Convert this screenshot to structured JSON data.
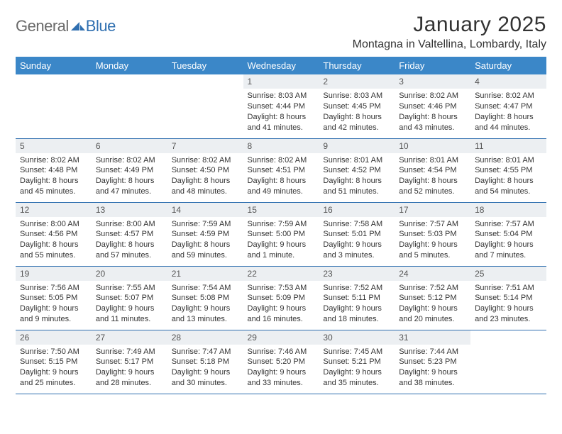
{
  "brand": {
    "text1": "General",
    "text2": "Blue",
    "text1_color": "#6a6a6a",
    "text2_color": "#2f6fb0",
    "icon_color": "#2f6fb0"
  },
  "title": "January 2025",
  "subtitle": "Montagna in Valtellina, Lombardy, Italy",
  "colors": {
    "header_bg": "#3b87c8",
    "header_text": "#ffffff",
    "daynum_bg": "#eceff2",
    "rule": "#2f6fb0",
    "body_text": "#333333"
  },
  "daysOfWeek": [
    "Sunday",
    "Monday",
    "Tuesday",
    "Wednesday",
    "Thursday",
    "Friday",
    "Saturday"
  ],
  "weeks": [
    [
      null,
      null,
      null,
      {
        "n": "1",
        "sr": "Sunrise: 8:03 AM",
        "ss": "Sunset: 4:44 PM",
        "d1": "Daylight: 8 hours",
        "d2": "and 41 minutes."
      },
      {
        "n": "2",
        "sr": "Sunrise: 8:03 AM",
        "ss": "Sunset: 4:45 PM",
        "d1": "Daylight: 8 hours",
        "d2": "and 42 minutes."
      },
      {
        "n": "3",
        "sr": "Sunrise: 8:02 AM",
        "ss": "Sunset: 4:46 PM",
        "d1": "Daylight: 8 hours",
        "d2": "and 43 minutes."
      },
      {
        "n": "4",
        "sr": "Sunrise: 8:02 AM",
        "ss": "Sunset: 4:47 PM",
        "d1": "Daylight: 8 hours",
        "d2": "and 44 minutes."
      }
    ],
    [
      {
        "n": "5",
        "sr": "Sunrise: 8:02 AM",
        "ss": "Sunset: 4:48 PM",
        "d1": "Daylight: 8 hours",
        "d2": "and 45 minutes."
      },
      {
        "n": "6",
        "sr": "Sunrise: 8:02 AM",
        "ss": "Sunset: 4:49 PM",
        "d1": "Daylight: 8 hours",
        "d2": "and 47 minutes."
      },
      {
        "n": "7",
        "sr": "Sunrise: 8:02 AM",
        "ss": "Sunset: 4:50 PM",
        "d1": "Daylight: 8 hours",
        "d2": "and 48 minutes."
      },
      {
        "n": "8",
        "sr": "Sunrise: 8:02 AM",
        "ss": "Sunset: 4:51 PM",
        "d1": "Daylight: 8 hours",
        "d2": "and 49 minutes."
      },
      {
        "n": "9",
        "sr": "Sunrise: 8:01 AM",
        "ss": "Sunset: 4:52 PM",
        "d1": "Daylight: 8 hours",
        "d2": "and 51 minutes."
      },
      {
        "n": "10",
        "sr": "Sunrise: 8:01 AM",
        "ss": "Sunset: 4:54 PM",
        "d1": "Daylight: 8 hours",
        "d2": "and 52 minutes."
      },
      {
        "n": "11",
        "sr": "Sunrise: 8:01 AM",
        "ss": "Sunset: 4:55 PM",
        "d1": "Daylight: 8 hours",
        "d2": "and 54 minutes."
      }
    ],
    [
      {
        "n": "12",
        "sr": "Sunrise: 8:00 AM",
        "ss": "Sunset: 4:56 PM",
        "d1": "Daylight: 8 hours",
        "d2": "and 55 minutes."
      },
      {
        "n": "13",
        "sr": "Sunrise: 8:00 AM",
        "ss": "Sunset: 4:57 PM",
        "d1": "Daylight: 8 hours",
        "d2": "and 57 minutes."
      },
      {
        "n": "14",
        "sr": "Sunrise: 7:59 AM",
        "ss": "Sunset: 4:59 PM",
        "d1": "Daylight: 8 hours",
        "d2": "and 59 minutes."
      },
      {
        "n": "15",
        "sr": "Sunrise: 7:59 AM",
        "ss": "Sunset: 5:00 PM",
        "d1": "Daylight: 9 hours",
        "d2": "and 1 minute."
      },
      {
        "n": "16",
        "sr": "Sunrise: 7:58 AM",
        "ss": "Sunset: 5:01 PM",
        "d1": "Daylight: 9 hours",
        "d2": "and 3 minutes."
      },
      {
        "n": "17",
        "sr": "Sunrise: 7:57 AM",
        "ss": "Sunset: 5:03 PM",
        "d1": "Daylight: 9 hours",
        "d2": "and 5 minutes."
      },
      {
        "n": "18",
        "sr": "Sunrise: 7:57 AM",
        "ss": "Sunset: 5:04 PM",
        "d1": "Daylight: 9 hours",
        "d2": "and 7 minutes."
      }
    ],
    [
      {
        "n": "19",
        "sr": "Sunrise: 7:56 AM",
        "ss": "Sunset: 5:05 PM",
        "d1": "Daylight: 9 hours",
        "d2": "and 9 minutes."
      },
      {
        "n": "20",
        "sr": "Sunrise: 7:55 AM",
        "ss": "Sunset: 5:07 PM",
        "d1": "Daylight: 9 hours",
        "d2": "and 11 minutes."
      },
      {
        "n": "21",
        "sr": "Sunrise: 7:54 AM",
        "ss": "Sunset: 5:08 PM",
        "d1": "Daylight: 9 hours",
        "d2": "and 13 minutes."
      },
      {
        "n": "22",
        "sr": "Sunrise: 7:53 AM",
        "ss": "Sunset: 5:09 PM",
        "d1": "Daylight: 9 hours",
        "d2": "and 16 minutes."
      },
      {
        "n": "23",
        "sr": "Sunrise: 7:52 AM",
        "ss": "Sunset: 5:11 PM",
        "d1": "Daylight: 9 hours",
        "d2": "and 18 minutes."
      },
      {
        "n": "24",
        "sr": "Sunrise: 7:52 AM",
        "ss": "Sunset: 5:12 PM",
        "d1": "Daylight: 9 hours",
        "d2": "and 20 minutes."
      },
      {
        "n": "25",
        "sr": "Sunrise: 7:51 AM",
        "ss": "Sunset: 5:14 PM",
        "d1": "Daylight: 9 hours",
        "d2": "and 23 minutes."
      }
    ],
    [
      {
        "n": "26",
        "sr": "Sunrise: 7:50 AM",
        "ss": "Sunset: 5:15 PM",
        "d1": "Daylight: 9 hours",
        "d2": "and 25 minutes."
      },
      {
        "n": "27",
        "sr": "Sunrise: 7:49 AM",
        "ss": "Sunset: 5:17 PM",
        "d1": "Daylight: 9 hours",
        "d2": "and 28 minutes."
      },
      {
        "n": "28",
        "sr": "Sunrise: 7:47 AM",
        "ss": "Sunset: 5:18 PM",
        "d1": "Daylight: 9 hours",
        "d2": "and 30 minutes."
      },
      {
        "n": "29",
        "sr": "Sunrise: 7:46 AM",
        "ss": "Sunset: 5:20 PM",
        "d1": "Daylight: 9 hours",
        "d2": "and 33 minutes."
      },
      {
        "n": "30",
        "sr": "Sunrise: 7:45 AM",
        "ss": "Sunset: 5:21 PM",
        "d1": "Daylight: 9 hours",
        "d2": "and 35 minutes."
      },
      {
        "n": "31",
        "sr": "Sunrise: 7:44 AM",
        "ss": "Sunset: 5:23 PM",
        "d1": "Daylight: 9 hours",
        "d2": "and 38 minutes."
      },
      null
    ]
  ]
}
